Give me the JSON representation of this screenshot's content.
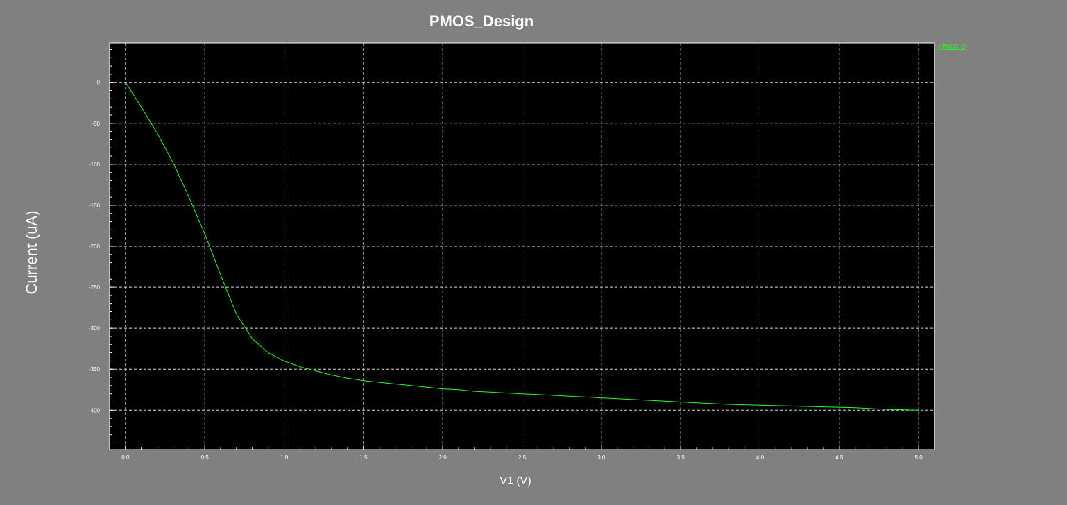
{
  "chart_data": {
    "type": "line",
    "title": "PMOS_Design",
    "xlabel": "V1 (V)",
    "ylabel": "Current (uA)",
    "xlim": [
      -0.1,
      5.1
    ],
    "ylim": [
      -448,
      48
    ],
    "x_ticks": [
      "0.0",
      "0.5",
      "1.0",
      "1.5",
      "2.0",
      "2.5",
      "3.0",
      "3.5",
      "4.0",
      "4.5",
      "5.0"
    ],
    "x_tick_values": [
      0,
      0.5,
      1,
      1.5,
      2,
      2.5,
      3,
      3.5,
      4,
      4.5,
      5
    ],
    "y_ticks": [
      "0",
      "-50",
      "-100",
      "-150",
      "-200",
      "-250",
      "-300",
      "-350",
      "-400"
    ],
    "y_tick_values": [
      0,
      -50,
      -100,
      -150,
      -200,
      -250,
      -300,
      -350,
      -400
    ],
    "grid": true,
    "legend_position": "top-right",
    "series": [
      {
        "name": "I(PMOS_1)",
        "color": "#22ff22",
        "x": [
          0,
          0.1,
          0.2,
          0.3,
          0.4,
          0.5,
          0.6,
          0.7,
          0.8,
          0.9,
          1.0,
          1.1,
          1.2,
          1.3,
          1.4,
          1.5,
          1.6,
          1.7,
          1.8,
          1.9,
          2.0,
          2.1,
          2.2,
          2.3,
          2.4,
          2.5,
          2.6,
          2.7,
          2.8,
          2.9,
          3.0,
          3.2,
          3.4,
          3.6,
          3.8,
          4.0,
          4.2,
          4.4,
          4.6,
          4.8,
          5.0
        ],
        "y": [
          0,
          -30,
          -62,
          -98,
          -140,
          -185,
          -235,
          -283,
          -313,
          -330,
          -340,
          -347,
          -352,
          -357,
          -361,
          -364,
          -366,
          -368,
          -370,
          -372,
          -374,
          -375,
          -377,
          -378,
          -379,
          -380,
          -381,
          -382,
          -383,
          -384,
          -385,
          -387,
          -389,
          -391,
          -393,
          -394,
          -395,
          -396,
          -397,
          -399,
          -400
        ]
      }
    ]
  }
}
